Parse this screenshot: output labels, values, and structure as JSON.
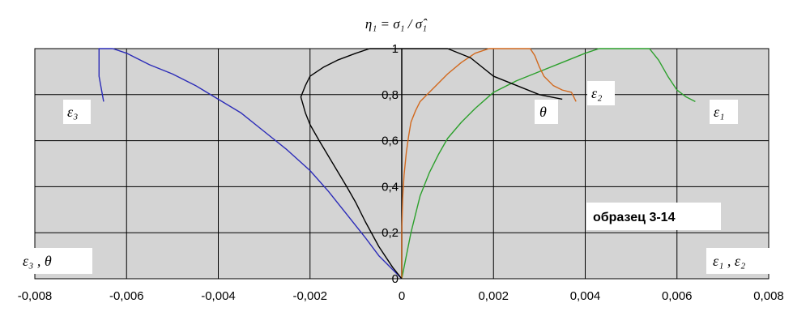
{
  "chart_data": {
    "type": "line",
    "title": "η₁ = σ₁ / σ̂₁",
    "xlabel_left": "ε₃ , θ",
    "xlabel_right": "ε₁ , ε₂",
    "annotation": "образец 3-14",
    "xlim": [
      -0.008,
      0.008
    ],
    "ylim": [
      0,
      1
    ],
    "x_ticks": [
      -0.008,
      -0.006,
      -0.004,
      -0.002,
      0,
      0.002,
      0.004,
      0.006,
      0.008
    ],
    "x_tick_labels": [
      "-0,008",
      "-0,006",
      "-0,004",
      "-0,002",
      "0",
      "0,002",
      "0,004",
      "0,006",
      "0,008"
    ],
    "y_ticks": [
      0,
      0.2,
      0.4,
      0.6,
      0.8,
      1
    ],
    "y_tick_labels": [
      "0",
      "0,2",
      "0,4",
      "0,6",
      "0,8",
      "1"
    ],
    "grid": true,
    "colors": {
      "plot_background": "#d4d4d4",
      "grid": "#000000",
      "epsilon1": "#2ca02c",
      "epsilon2": "#d2691e",
      "epsilon3": "#2b2bb8",
      "theta": "#000000"
    },
    "series": [
      {
        "name": "ε₁",
        "color": "#2ca02c",
        "x": [
          0,
          0.0001,
          0.0002,
          0.0003,
          0.0004,
          0.0006,
          0.0008,
          0.001,
          0.0013,
          0.0016,
          0.002,
          0.0025,
          0.003,
          0.0035,
          0.004,
          0.0043,
          0.0047,
          0.0051,
          0.0054,
          0.0056,
          0.0058,
          0.006,
          0.0062,
          0.0064
        ],
        "y": [
          0,
          0.1,
          0.2,
          0.28,
          0.36,
          0.46,
          0.54,
          0.61,
          0.68,
          0.74,
          0.81,
          0.86,
          0.9,
          0.94,
          0.98,
          1.0,
          1.0,
          1.0,
          1.0,
          0.95,
          0.88,
          0.82,
          0.79,
          0.77
        ]
      },
      {
        "name": "ε₂",
        "color": "#d2691e",
        "x": [
          0,
          0,
          2e-05,
          5e-05,
          0.0001,
          0.00015,
          0.0002,
          0.0003,
          0.0004,
          0.0006,
          0.0008,
          0.001,
          0.0013,
          0.0016,
          0.0019,
          0.0022,
          0.0025,
          0.0028,
          0.0029,
          0.003,
          0.0031,
          0.0033,
          0.0035,
          0.0037,
          0.0038
        ],
        "y": [
          0,
          0.2,
          0.35,
          0.45,
          0.55,
          0.62,
          0.68,
          0.73,
          0.77,
          0.81,
          0.85,
          0.89,
          0.94,
          0.98,
          1.0,
          1.0,
          1.0,
          1.0,
          0.97,
          0.92,
          0.88,
          0.84,
          0.82,
          0.81,
          0.77
        ]
      },
      {
        "name": "ε₃",
        "color": "#2b2bb8",
        "x": [
          0,
          -0.0002,
          -0.0005,
          -0.0008,
          -0.0012,
          -0.0016,
          -0.002,
          -0.0025,
          -0.003,
          -0.0035,
          -0.004,
          -0.0045,
          -0.005,
          -0.0055,
          -0.006,
          -0.0063,
          -0.0066,
          -0.0066,
          -0.0065
        ],
        "y": [
          0,
          0.04,
          0.1,
          0.18,
          0.28,
          0.38,
          0.47,
          0.56,
          0.64,
          0.72,
          0.78,
          0.84,
          0.89,
          0.93,
          0.98,
          1.0,
          1.0,
          0.88,
          0.77
        ]
      },
      {
        "name": "θ",
        "color": "#000000",
        "x": [
          0,
          -0.0002,
          -0.0005,
          -0.0008,
          -0.001,
          -0.0012,
          -0.0015,
          -0.0018,
          -0.002,
          -0.0021,
          -0.0022,
          -0.0021,
          -0.002,
          -0.0017,
          -0.0014,
          -0.001,
          -0.0007,
          -0.0003,
          0,
          0.0005,
          0.001,
          0.0015,
          0.002,
          0.0025,
          0.003,
          0.0035
        ],
        "y": [
          0,
          0.05,
          0.14,
          0.25,
          0.33,
          0.4,
          0.5,
          0.6,
          0.67,
          0.72,
          0.79,
          0.84,
          0.88,
          0.92,
          0.95,
          0.98,
          1.0,
          1.0,
          1.0,
          1.0,
          1.0,
          0.96,
          0.88,
          0.84,
          0.8,
          0.78
        ]
      }
    ]
  }
}
